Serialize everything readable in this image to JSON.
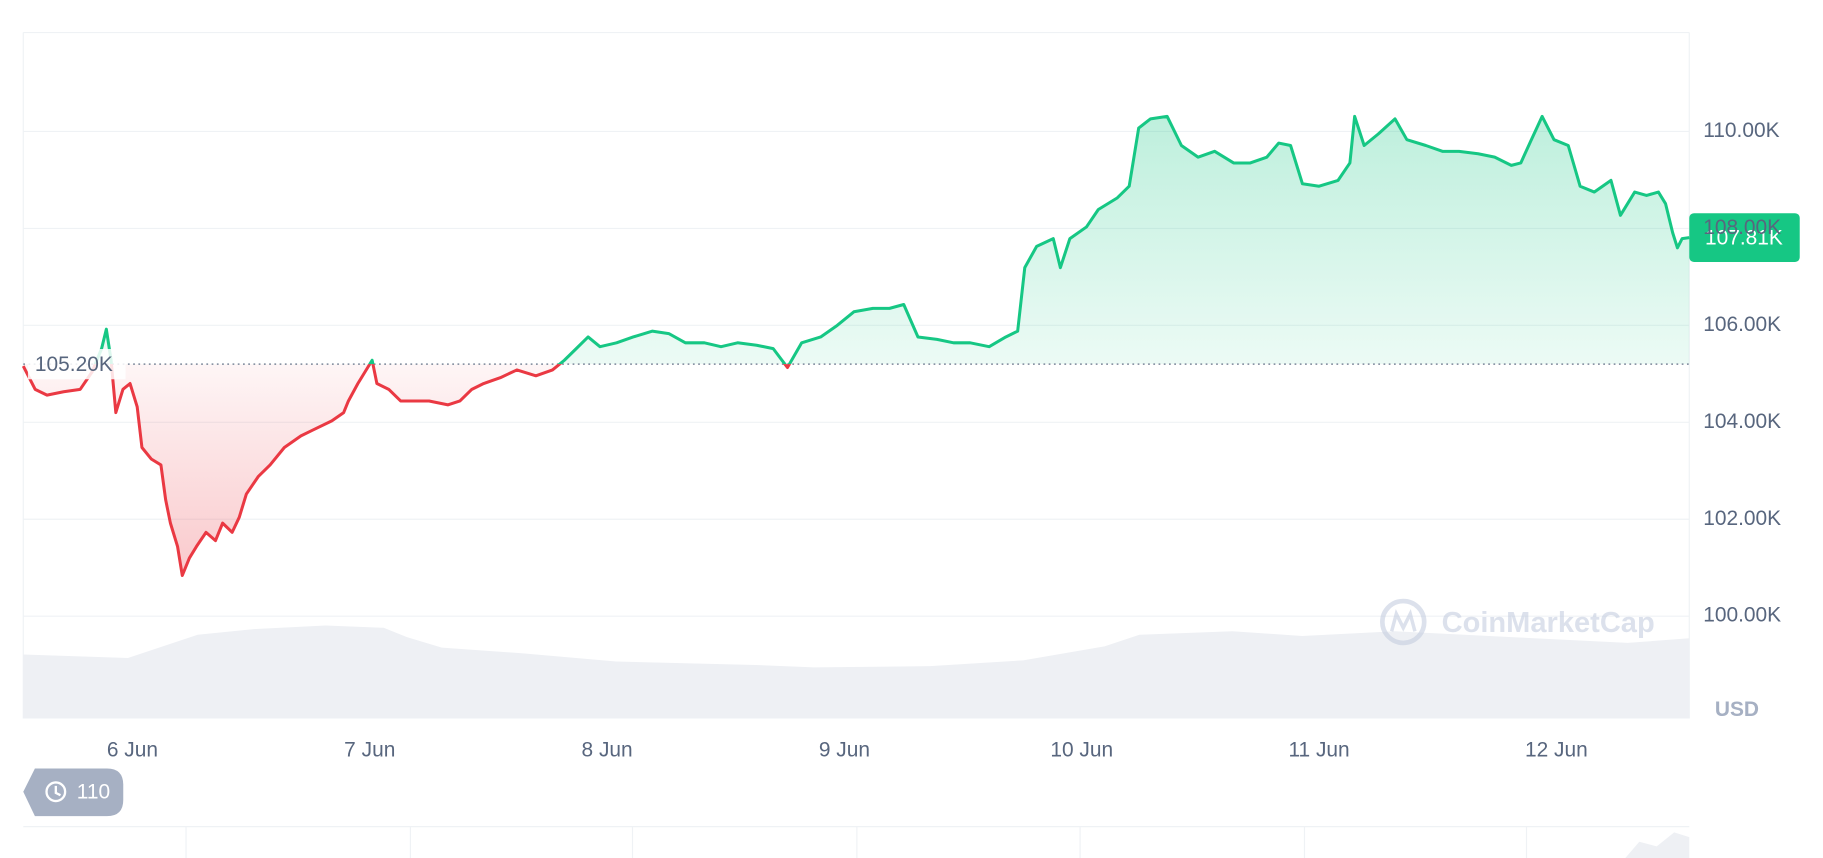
{
  "chart_data": {
    "type": "line",
    "x": [
      5.54,
      5.59,
      5.64,
      5.71,
      5.78,
      5.83,
      5.87,
      5.89,
      5.91,
      5.93,
      5.96,
      5.99,
      6.02,
      6.04,
      6.08,
      6.12,
      6.14,
      6.16,
      6.19,
      6.21,
      6.24,
      6.27,
      6.31,
      6.35,
      6.38,
      6.42,
      6.45,
      6.48,
      6.53,
      6.58,
      6.64,
      6.71,
      6.76,
      6.84,
      6.89,
      6.91,
      6.95,
      6.98,
      7.01,
      7.03,
      7.08,
      7.13,
      7.18,
      7.25,
      7.33,
      7.38,
      7.43,
      7.48,
      7.55,
      7.62,
      7.7,
      7.77,
      7.82,
      7.87,
      7.92,
      7.97,
      8.04,
      8.11,
      8.19,
      8.26,
      8.33,
      8.41,
      8.48,
      8.55,
      8.63,
      8.7,
      8.76,
      8.82,
      8.9,
      8.97,
      9.04,
      9.12,
      9.19,
      9.25,
      9.31,
      9.39,
      9.46,
      9.53,
      9.61,
      9.68,
      9.73,
      9.76,
      9.81,
      9.88,
      9.91,
      9.95,
      10.02,
      10.07,
      10.15,
      10.2,
      10.24,
      10.29,
      10.36,
      10.42,
      10.49,
      10.56,
      10.64,
      10.71,
      10.78,
      10.83,
      10.88,
      10.93,
      11.0,
      11.08,
      11.13,
      11.15,
      11.19,
      11.25,
      11.32,
      11.37,
      11.45,
      11.52,
      11.59,
      11.67,
      11.74,
      11.81,
      11.85,
      11.89,
      11.94,
      11.99,
      12.05,
      12.1,
      12.16,
      12.23,
      12.27,
      12.33,
      12.38,
      12.43,
      12.46,
      12.49,
      12.51,
      12.53,
      12.56
    ],
    "values": [
      105160,
      104680,
      104560,
      104630,
      104680,
      105040,
      105520,
      105920,
      105280,
      104200,
      104680,
      104800,
      104320,
      103480,
      103240,
      103120,
      102400,
      101920,
      101440,
      100840,
      101200,
      101440,
      101730,
      101560,
      101920,
      101730,
      102040,
      102520,
      102880,
      103120,
      103480,
      103720,
      103840,
      104030,
      104200,
      104440,
      104800,
      105040,
      105280,
      104800,
      104680,
      104440,
      104440,
      104440,
      104360,
      104440,
      104680,
      104800,
      104920,
      105080,
      104960,
      105080,
      105280,
      105520,
      105760,
      105560,
      105640,
      105760,
      105880,
      105830,
      105640,
      105640,
      105560,
      105640,
      105590,
      105520,
      105130,
      105640,
      105760,
      106000,
      106280,
      106350,
      106350,
      106430,
      105760,
      105710,
      105640,
      105640,
      105560,
      105760,
      105880,
      107190,
      107630,
      107790,
      107190,
      107790,
      108030,
      108390,
      108630,
      108870,
      110070,
      110260,
      110310,
      109710,
      109470,
      109590,
      109350,
      109350,
      109470,
      109760,
      109710,
      108920,
      108870,
      108990,
      109350,
      110310,
      109710,
      109950,
      110260,
      109830,
      109710,
      109590,
      109590,
      109540,
      109470,
      109300,
      109350,
      109780,
      110310,
      109830,
      109710,
      108870,
      108750,
      108990,
      108270,
      108750,
      108680,
      108750,
      108510,
      107910,
      107600,
      107790,
      107810
    ],
    "up_color": "#16c784",
    "down_color": "#ea3943",
    "baseline": {
      "value": 105200,
      "label": "105.20K"
    },
    "last": {
      "value": 107810,
      "label": "107.81K"
    },
    "xlim": [
      5.54,
      12.56
    ],
    "ylim": [
      97890,
      112040
    ],
    "xticks": [
      {
        "value": 6,
        "label": "6 Jun"
      },
      {
        "value": 7,
        "label": "7 Jun"
      },
      {
        "value": 8,
        "label": "8 Jun"
      },
      {
        "value": 9,
        "label": "9 Jun"
      },
      {
        "value": 10,
        "label": "10 Jun"
      },
      {
        "value": 11,
        "label": "11 Jun"
      },
      {
        "value": 12,
        "label": "12 Jun"
      }
    ],
    "yticks": [
      {
        "value": 100000,
        "label": "100.00K"
      },
      {
        "value": 102000,
        "label": "102.00K"
      },
      {
        "value": 104000,
        "label": "104.00K"
      },
      {
        "value": 106000,
        "label": "106.00K"
      },
      {
        "value": 108000,
        "label": "108.00K"
      },
      {
        "value": 110000,
        "label": "110.00K"
      }
    ],
    "grid": true,
    "unit_label": "USD",
    "watermark": "CoinMarketCap",
    "history_badge": 110
  }
}
